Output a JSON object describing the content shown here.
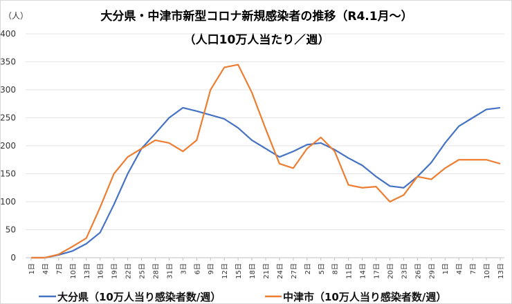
{
  "chart_data": {
    "type": "line",
    "title": "大分県・中津市新型コロナ新規感染者の推移（R4.1月～）",
    "subtitle": "（人口10万人当たり／週）",
    "ylabel": "（人）",
    "ylim": [
      0,
      400
    ],
    "yticks": [
      0,
      50,
      100,
      150,
      200,
      250,
      300,
      350,
      400
    ],
    "grid": true,
    "legend_position": "bottom",
    "categories": [
      "1日",
      "4日",
      "7日",
      "10日",
      "13日",
      "16日",
      "19日",
      "22日",
      "25日",
      "28日",
      "31日",
      "3日",
      "6日",
      "9日",
      "12日",
      "15日",
      "18日",
      "21日",
      "24日",
      "27日",
      "2日",
      "5日",
      "8日",
      "11日",
      "14日",
      "17日",
      "20日",
      "23日",
      "26日",
      "29日",
      "1日",
      "4日",
      "7日",
      "10日",
      "13日"
    ],
    "series": [
      {
        "name": "大分県（10万人当り感染者数/週）",
        "color": "#4472C4",
        "values": [
          0,
          0,
          5,
          12,
          25,
          45,
          95,
          150,
          195,
          222,
          250,
          268,
          262,
          255,
          248,
          232,
          210,
          195,
          180,
          190,
          202,
          205,
          193,
          178,
          165,
          145,
          128,
          125,
          145,
          170,
          205,
          235,
          250,
          265,
          268
        ]
      },
      {
        "name": "中津市（10万人当り感染者数/週）",
        "color": "#ED7D31",
        "values": [
          0,
          0,
          6,
          20,
          35,
          90,
          150,
          180,
          195,
          210,
          205,
          190,
          210,
          300,
          340,
          345,
          295,
          230,
          168,
          160,
          195,
          215,
          190,
          130,
          125,
          127,
          100,
          112,
          145,
          140,
          160,
          175,
          175,
          175,
          168
        ]
      }
    ]
  }
}
